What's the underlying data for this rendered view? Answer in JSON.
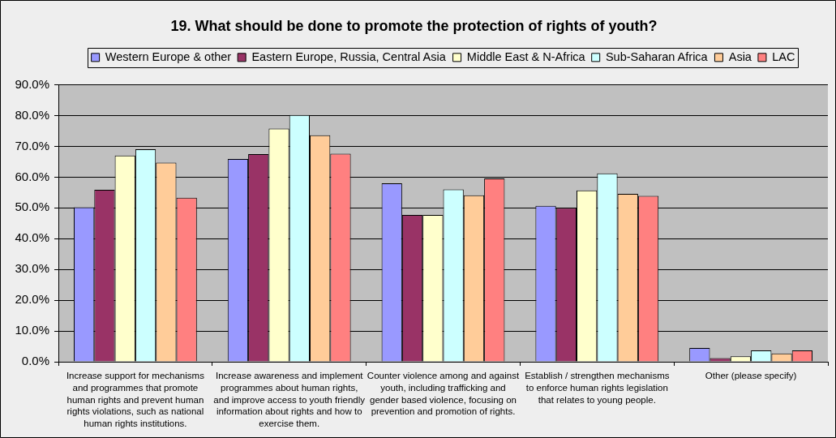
{
  "chart_data": {
    "type": "bar",
    "title": "19. What should be done to promote the protection of rights of youth?",
    "categories": [
      "Increase support for mechanisms and programmes that promote human rights and prevent human rights violations, such as national human rights institutions.",
      "Increase awareness and implement programmes about human rights, and improve access to youth friendly information about rights and how to exercise them.",
      "Counter violence among and against youth, including trafficking and gender based violence, focusing on prevention and promotion of rights.",
      "Establish / strengthen mechanisms to enforce human rights legislation that relates to young people.",
      "Other (please specify)"
    ],
    "series": [
      {
        "name": "Western Europe & other",
        "color": "#9999ff",
        "values": [
          50.2,
          65.9,
          58.0,
          50.7,
          4.5
        ]
      },
      {
        "name": "Eastern Europe, Russia, Central Asia",
        "color": "#993366",
        "values": [
          55.9,
          67.5,
          47.7,
          50.0,
          1.2
        ]
      },
      {
        "name": "Middle East & N-Africa",
        "color": "#ffffcc",
        "values": [
          67.0,
          75.8,
          47.7,
          55.7,
          1.8
        ]
      },
      {
        "name": "Sub-Saharan Africa",
        "color": "#ccffff",
        "values": [
          69.1,
          80.2,
          56.0,
          61.2,
          3.7
        ]
      },
      {
        "name": "Asia",
        "color": "#ffcc99",
        "values": [
          64.7,
          73.6,
          54.1,
          54.6,
          2.7
        ]
      },
      {
        "name": "LAC",
        "color": "#ff8080",
        "values": [
          53.3,
          67.6,
          59.6,
          53.9,
          3.7
        ]
      }
    ],
    "ylim": [
      0,
      90
    ],
    "yticks": [
      {
        "value": 0,
        "label": "0.0%"
      },
      {
        "value": 10,
        "label": "10.0%"
      },
      {
        "value": 20,
        "label": "20.0%"
      },
      {
        "value": 30,
        "label": "30.0%"
      },
      {
        "value": 40,
        "label": "40.0%"
      },
      {
        "value": 50,
        "label": "50.0%"
      },
      {
        "value": 60,
        "label": "60.0%"
      },
      {
        "value": 70,
        "label": "70.0%"
      },
      {
        "value": 80,
        "label": "80.0%"
      },
      {
        "value": 90,
        "label": "90.0%"
      }
    ],
    "grid": "y",
    "legend": "top"
  }
}
